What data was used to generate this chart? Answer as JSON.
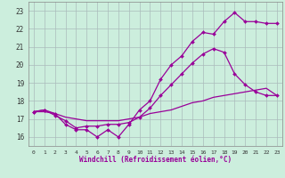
{
  "xlabel": "Windchill (Refroidissement éolien,°C)",
  "bg_color": "#cceedd",
  "grid_color": "#aabbbb",
  "line_color": "#990099",
  "xlim": [
    -0.5,
    23.5
  ],
  "ylim": [
    15.5,
    23.5
  ],
  "xticks": [
    0,
    1,
    2,
    3,
    4,
    5,
    6,
    7,
    8,
    9,
    10,
    11,
    12,
    13,
    14,
    15,
    16,
    17,
    18,
    19,
    20,
    21,
    22,
    23
  ],
  "yticks": [
    16,
    17,
    18,
    19,
    20,
    21,
    22,
    23
  ],
  "series1_x": [
    0,
    1,
    2,
    3,
    4,
    5,
    6,
    7,
    8,
    9,
    10,
    11,
    12,
    13,
    14,
    15,
    16,
    17,
    18,
    19,
    20,
    21,
    22,
    23
  ],
  "series1_y": [
    17.4,
    17.5,
    17.3,
    16.7,
    16.4,
    16.4,
    16.0,
    16.4,
    16.0,
    16.7,
    17.5,
    18.0,
    19.2,
    20.0,
    20.5,
    21.3,
    21.8,
    21.7,
    22.4,
    22.9,
    22.4,
    22.4,
    22.3,
    22.3
  ],
  "series2_x": [
    0,
    1,
    2,
    3,
    4,
    5,
    6,
    7,
    8,
    9,
    10,
    11,
    12,
    13,
    14,
    15,
    16,
    17,
    18,
    19,
    20,
    21,
    22,
    23
  ],
  "series2_y": [
    17.4,
    17.5,
    17.2,
    16.9,
    16.5,
    16.6,
    16.6,
    16.7,
    16.7,
    16.8,
    17.1,
    17.6,
    18.3,
    18.9,
    19.5,
    20.1,
    20.6,
    20.9,
    20.7,
    19.5,
    18.9,
    18.5,
    18.3,
    18.3
  ],
  "series3_x": [
    0,
    1,
    2,
    3,
    4,
    5,
    6,
    7,
    8,
    9,
    10,
    11,
    12,
    13,
    14,
    15,
    16,
    17,
    18,
    19,
    20,
    21,
    22,
    23
  ],
  "series3_y": [
    17.4,
    17.4,
    17.3,
    17.1,
    17.0,
    16.9,
    16.9,
    16.9,
    16.9,
    17.0,
    17.1,
    17.3,
    17.4,
    17.5,
    17.7,
    17.9,
    18.0,
    18.2,
    18.3,
    18.4,
    18.5,
    18.6,
    18.7,
    18.3
  ]
}
